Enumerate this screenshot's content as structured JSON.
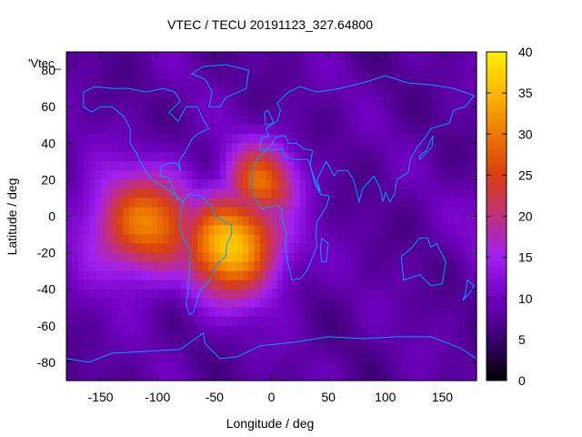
{
  "chart_data": {
    "type": "heatmap",
    "title": "VTEC / TECU 20191123_327.64800",
    "xlabel": "Longitude / deg",
    "ylabel": "Latitude / deg",
    "legend_label": "'Vtec_",
    "xlim": [
      -180,
      180
    ],
    "ylim": [
      -90,
      90
    ],
    "xticks": [
      -150,
      -100,
      -50,
      0,
      50,
      100,
      150
    ],
    "yticks": [
      -80,
      -60,
      -40,
      -20,
      0,
      20,
      40,
      60,
      80
    ],
    "colorbar": {
      "min": 0,
      "max": 40,
      "ticks": [
        0,
        5,
        10,
        15,
        20,
        25,
        30,
        35,
        40
      ],
      "palette": [
        "#000000",
        "#3a0070",
        "#7000c0",
        "#a020f0",
        "#c03080",
        "#d84010",
        "#ee7800",
        "#fbb800",
        "#fff000"
      ]
    },
    "grid_resolution_deg": 5,
    "field_description_values": {
      "background_tecu": 8,
      "polar_minimum_tecu": 3,
      "peak_regions": [
        {
          "lon": -35,
          "lat": -15,
          "tecu": 37
        },
        {
          "lon": -110,
          "lat": -5,
          "tecu": 30
        },
        {
          "lon": -10,
          "lat": 18,
          "tecu": 28
        }
      ]
    },
    "coastline_color": "#00a0ff"
  }
}
